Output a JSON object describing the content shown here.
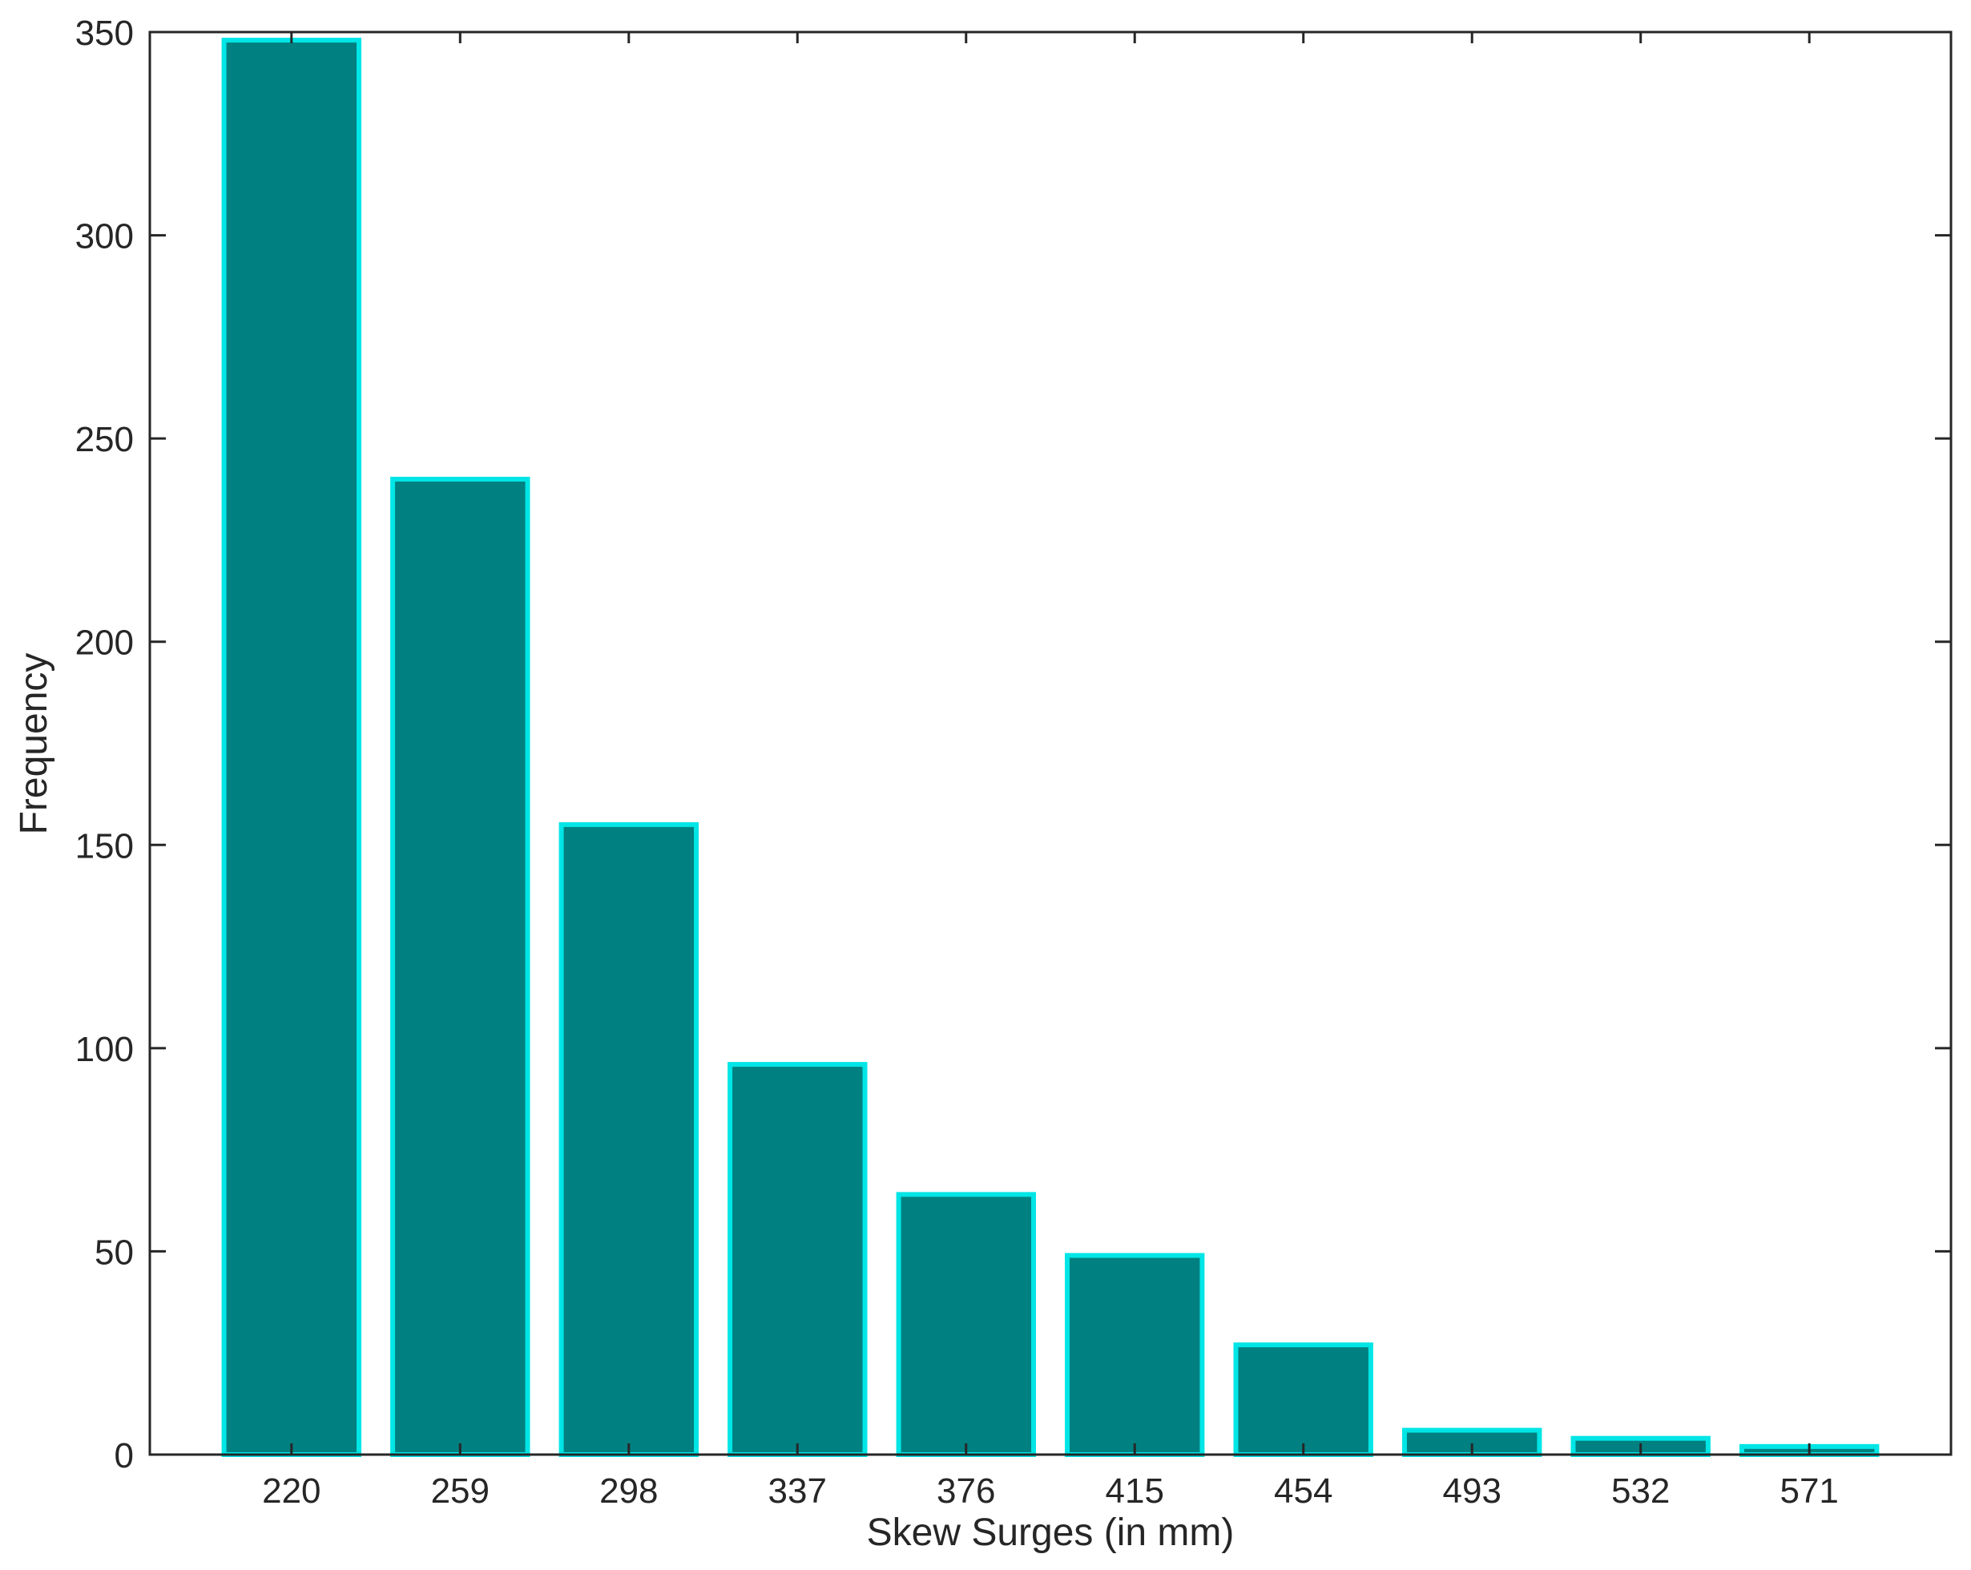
{
  "chart_data": {
    "type": "bar",
    "categories": [
      "220",
      "259",
      "298",
      "337",
      "376",
      "415",
      "454",
      "493",
      "532",
      "571"
    ],
    "values": [
      348,
      240,
      155,
      96,
      64,
      49,
      27,
      6,
      4,
      2
    ],
    "xlabel": "Skew Surges (in mm)",
    "ylabel": "Frequency",
    "ylim": [
      0,
      350
    ],
    "yticks": [
      0,
      50,
      100,
      150,
      200,
      250,
      300,
      350
    ],
    "grid": false,
    "bar_fill_color": "#008080",
    "bar_edge_color": "#00e5e5",
    "axis_color": "#262626"
  }
}
